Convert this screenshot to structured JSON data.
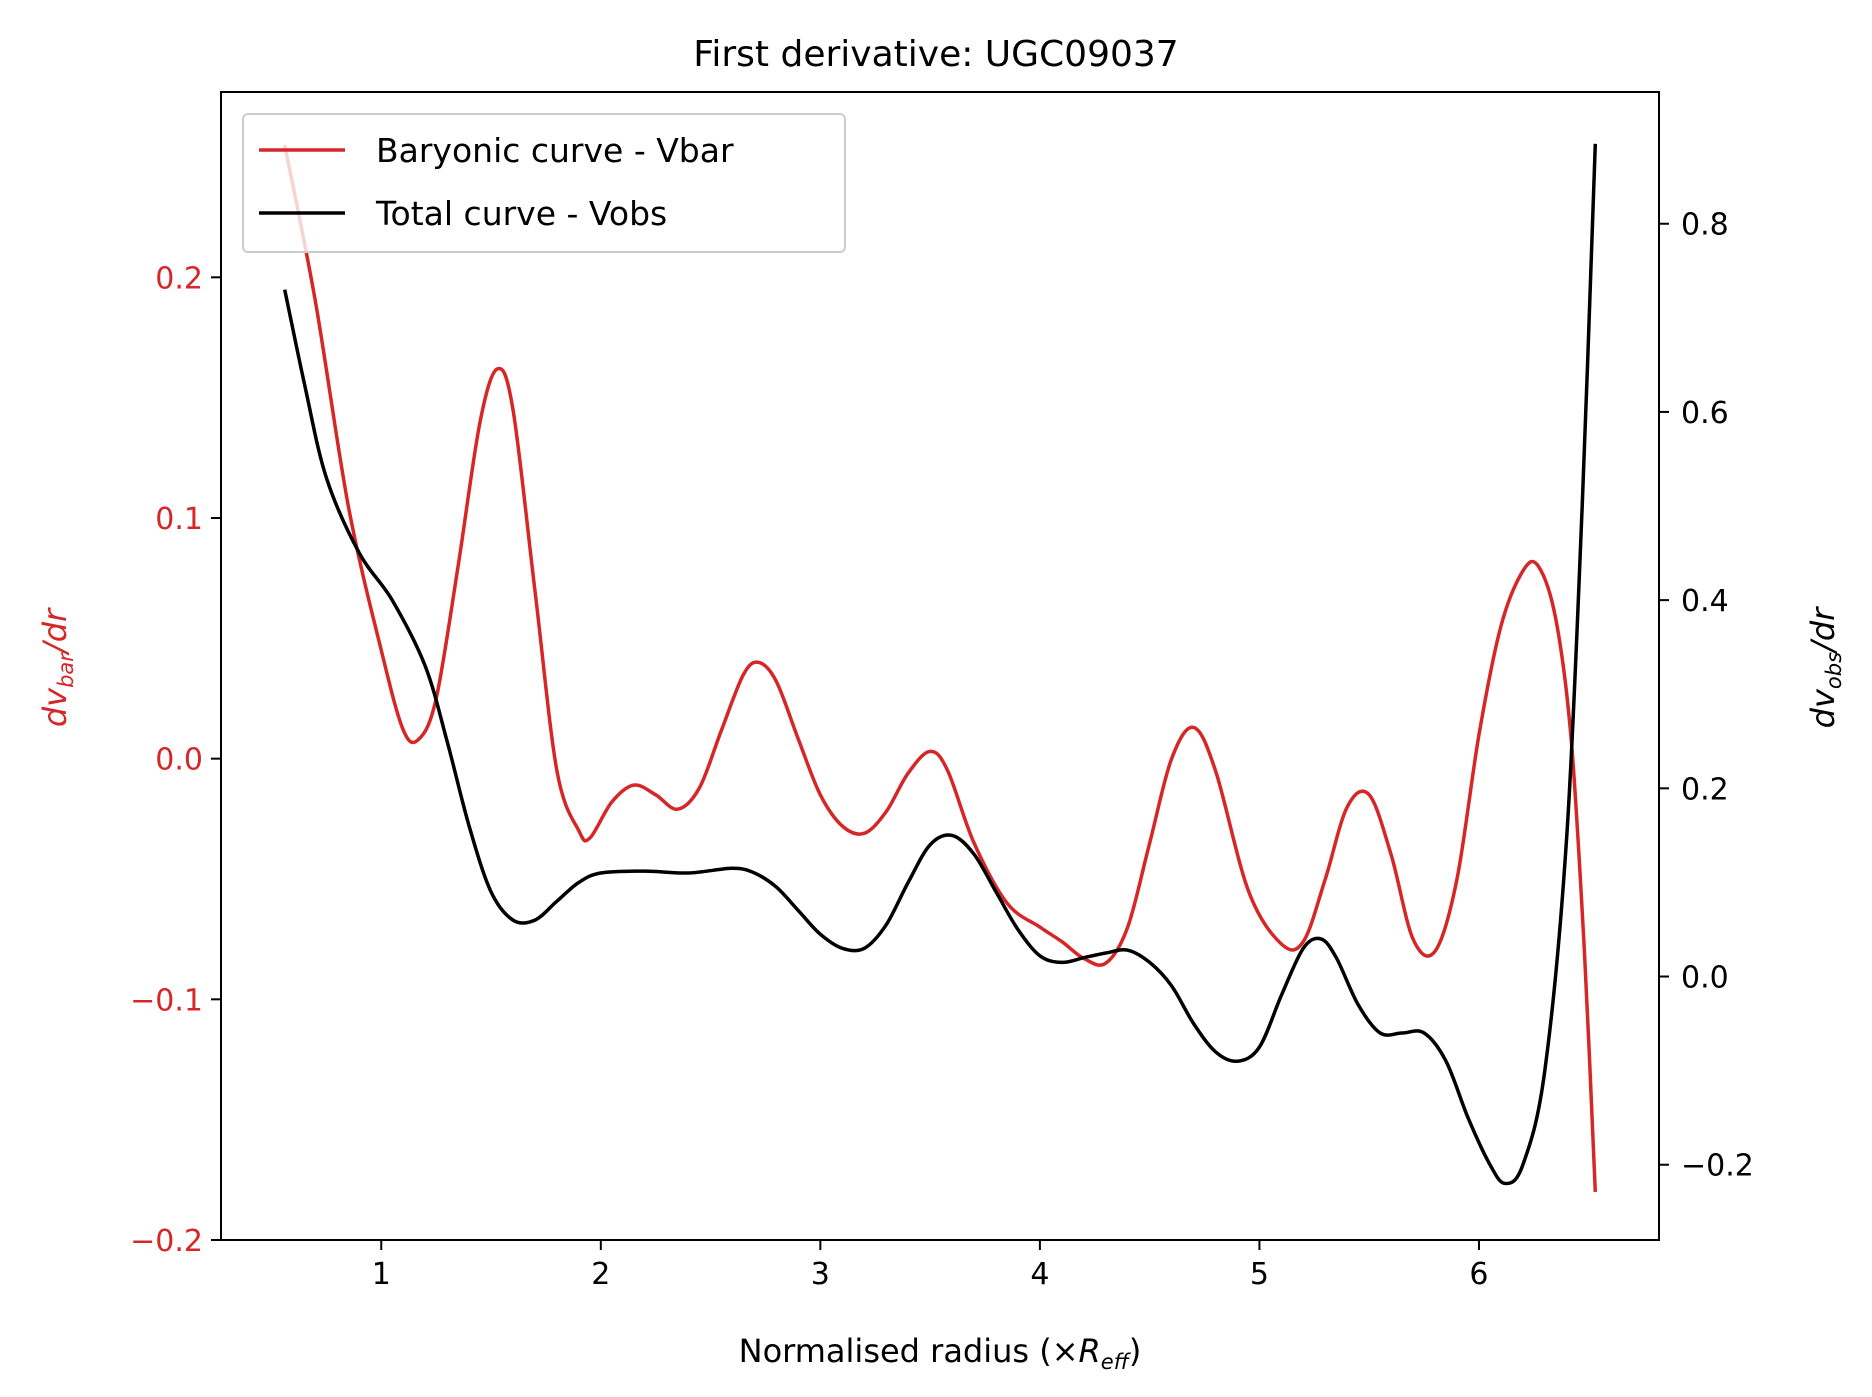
{
  "chart_data": {
    "type": "line",
    "title": "First derivative: UGC09037",
    "xlabel": {
      "main": "Normalised radius (×",
      "var": "R",
      "sub": "eff",
      "close": ")"
    },
    "ylabel_left": {
      "var": "dv",
      "sub": "bar",
      "tail": "/dr"
    },
    "ylabel_right": {
      "var": "dv",
      "sub": "obs",
      "tail": "/dr"
    },
    "xlim": [
      0.27,
      6.82
    ],
    "ylim_left": [
      -0.2,
      0.277
    ],
    "ylim_right": [
      -0.28,
      0.94
    ],
    "x_ticks": [
      1,
      2,
      3,
      4,
      5,
      6
    ],
    "y_left_ticks": [
      0.2,
      0.1,
      0.0,
      -0.1,
      -0.2
    ],
    "y_left_tick_labels": [
      "0.2",
      "0.1",
      "0.0",
      "−0.1",
      "−0.2"
    ],
    "y_right_ticks": [
      0.8,
      0.6,
      0.4,
      0.2,
      0.0,
      -0.2
    ],
    "y_right_tick_labels": [
      "0.8",
      "0.6",
      "0.4",
      "0.2",
      "0.0",
      "−0.2"
    ],
    "left_axis_color": "#d62728",
    "right_axis_color": "#000000",
    "legend_position": "upper-left",
    "series": [
      {
        "name": "Baryonic curve - Vbar",
        "axis": "left",
        "color": "#d62728",
        "points": [
          [
            0.56,
            0.255
          ],
          [
            0.7,
            0.19
          ],
          [
            0.85,
            0.105
          ],
          [
            1.0,
            0.045
          ],
          [
            1.1,
            0.012
          ],
          [
            1.17,
            0.008
          ],
          [
            1.25,
            0.025
          ],
          [
            1.35,
            0.08
          ],
          [
            1.45,
            0.14
          ],
          [
            1.53,
            0.162
          ],
          [
            1.6,
            0.145
          ],
          [
            1.7,
            0.07
          ],
          [
            1.8,
            -0.005
          ],
          [
            1.9,
            -0.03
          ],
          [
            1.95,
            -0.033
          ],
          [
            2.05,
            -0.018
          ],
          [
            2.15,
            -0.011
          ],
          [
            2.25,
            -0.015
          ],
          [
            2.35,
            -0.021
          ],
          [
            2.45,
            -0.012
          ],
          [
            2.55,
            0.012
          ],
          [
            2.65,
            0.035
          ],
          [
            2.72,
            0.04
          ],
          [
            2.8,
            0.032
          ],
          [
            2.9,
            0.008
          ],
          [
            3.0,
            -0.015
          ],
          [
            3.1,
            -0.028
          ],
          [
            3.2,
            -0.031
          ],
          [
            3.3,
            -0.022
          ],
          [
            3.4,
            -0.006
          ],
          [
            3.5,
            0.003
          ],
          [
            3.58,
            -0.005
          ],
          [
            3.7,
            -0.035
          ],
          [
            3.85,
            -0.06
          ],
          [
            4.0,
            -0.07
          ],
          [
            4.1,
            -0.076
          ],
          [
            4.2,
            -0.083
          ],
          [
            4.3,
            -0.085
          ],
          [
            4.4,
            -0.07
          ],
          [
            4.5,
            -0.035
          ],
          [
            4.6,
            0.0
          ],
          [
            4.7,
            0.013
          ],
          [
            4.8,
            -0.005
          ],
          [
            4.95,
            -0.055
          ],
          [
            5.1,
            -0.077
          ],
          [
            5.2,
            -0.076
          ],
          [
            5.3,
            -0.05
          ],
          [
            5.4,
            -0.02
          ],
          [
            5.5,
            -0.015
          ],
          [
            5.6,
            -0.04
          ],
          [
            5.7,
            -0.075
          ],
          [
            5.8,
            -0.08
          ],
          [
            5.9,
            -0.05
          ],
          [
            6.0,
            0.01
          ],
          [
            6.1,
            0.055
          ],
          [
            6.2,
            0.078
          ],
          [
            6.27,
            0.08
          ],
          [
            6.35,
            0.058
          ],
          [
            6.42,
            0.008
          ],
          [
            6.48,
            -0.08
          ],
          [
            6.53,
            -0.18
          ]
        ]
      },
      {
        "name": "Total curve - Vobs",
        "axis": "right",
        "color": "#000000",
        "points": [
          [
            0.56,
            0.73
          ],
          [
            0.65,
            0.63
          ],
          [
            0.75,
            0.53
          ],
          [
            0.9,
            0.45
          ],
          [
            1.05,
            0.4
          ],
          [
            1.2,
            0.33
          ],
          [
            1.3,
            0.25
          ],
          [
            1.4,
            0.16
          ],
          [
            1.5,
            0.09
          ],
          [
            1.6,
            0.06
          ],
          [
            1.7,
            0.06
          ],
          [
            1.8,
            0.08
          ],
          [
            1.9,
            0.1
          ],
          [
            2.0,
            0.11
          ],
          [
            2.2,
            0.112
          ],
          [
            2.4,
            0.11
          ],
          [
            2.6,
            0.115
          ],
          [
            2.7,
            0.11
          ],
          [
            2.8,
            0.095
          ],
          [
            2.9,
            0.07
          ],
          [
            3.0,
            0.045
          ],
          [
            3.1,
            0.03
          ],
          [
            3.2,
            0.03
          ],
          [
            3.3,
            0.055
          ],
          [
            3.4,
            0.1
          ],
          [
            3.5,
            0.14
          ],
          [
            3.6,
            0.15
          ],
          [
            3.7,
            0.13
          ],
          [
            3.8,
            0.09
          ],
          [
            3.9,
            0.05
          ],
          [
            4.0,
            0.022
          ],
          [
            4.1,
            0.015
          ],
          [
            4.2,
            0.02
          ],
          [
            4.3,
            0.025
          ],
          [
            4.4,
            0.028
          ],
          [
            4.5,
            0.015
          ],
          [
            4.6,
            -0.01
          ],
          [
            4.7,
            -0.05
          ],
          [
            4.8,
            -0.08
          ],
          [
            4.9,
            -0.09
          ],
          [
            5.0,
            -0.075
          ],
          [
            5.1,
            -0.02
          ],
          [
            5.2,
            0.03
          ],
          [
            5.28,
            0.04
          ],
          [
            5.35,
            0.02
          ],
          [
            5.45,
            -0.03
          ],
          [
            5.55,
            -0.06
          ],
          [
            5.65,
            -0.06
          ],
          [
            5.75,
            -0.06
          ],
          [
            5.85,
            -0.09
          ],
          [
            5.95,
            -0.15
          ],
          [
            6.05,
            -0.2
          ],
          [
            6.12,
            -0.22
          ],
          [
            6.2,
            -0.2
          ],
          [
            6.3,
            -0.1
          ],
          [
            6.4,
            0.15
          ],
          [
            6.47,
            0.5
          ],
          [
            6.53,
            0.885
          ]
        ]
      }
    ]
  }
}
